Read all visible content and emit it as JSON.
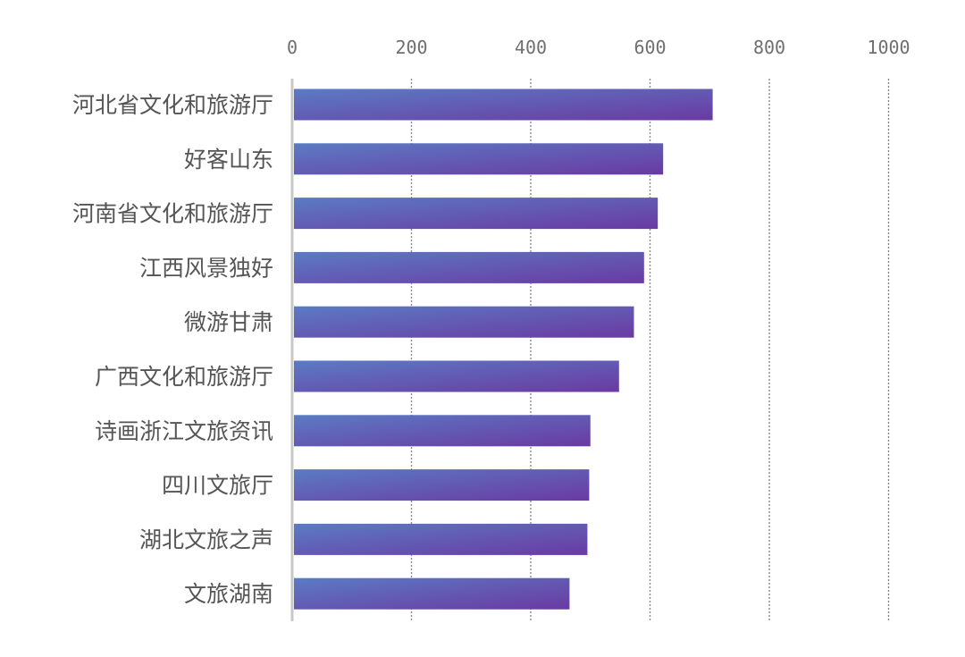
{
  "chart_data": {
    "type": "bar",
    "orientation": "horizontal",
    "categories": [
      "河北省文化和旅游厅",
      "好客山东",
      "河南省文化和旅游厅",
      "江西风景独好",
      "微游甘肃",
      "广西文化和旅游厅",
      "诗画浙江文旅资讯",
      "四川文旅厅",
      "湖北文旅之声",
      "文旅湖南"
    ],
    "values": [
      705,
      622,
      613,
      590,
      573,
      548,
      500,
      498,
      495,
      465
    ],
    "xlim": [
      0,
      1000
    ],
    "xticks": [
      0,
      200,
      400,
      600,
      800,
      1000
    ],
    "xtick_labels": [
      "0",
      "200",
      "400",
      "600",
      "800",
      "1000"
    ],
    "x_axis_position": "top",
    "grid": true,
    "bar_colors": [
      "#5b7bc4",
      "#6a3aa2"
    ]
  }
}
